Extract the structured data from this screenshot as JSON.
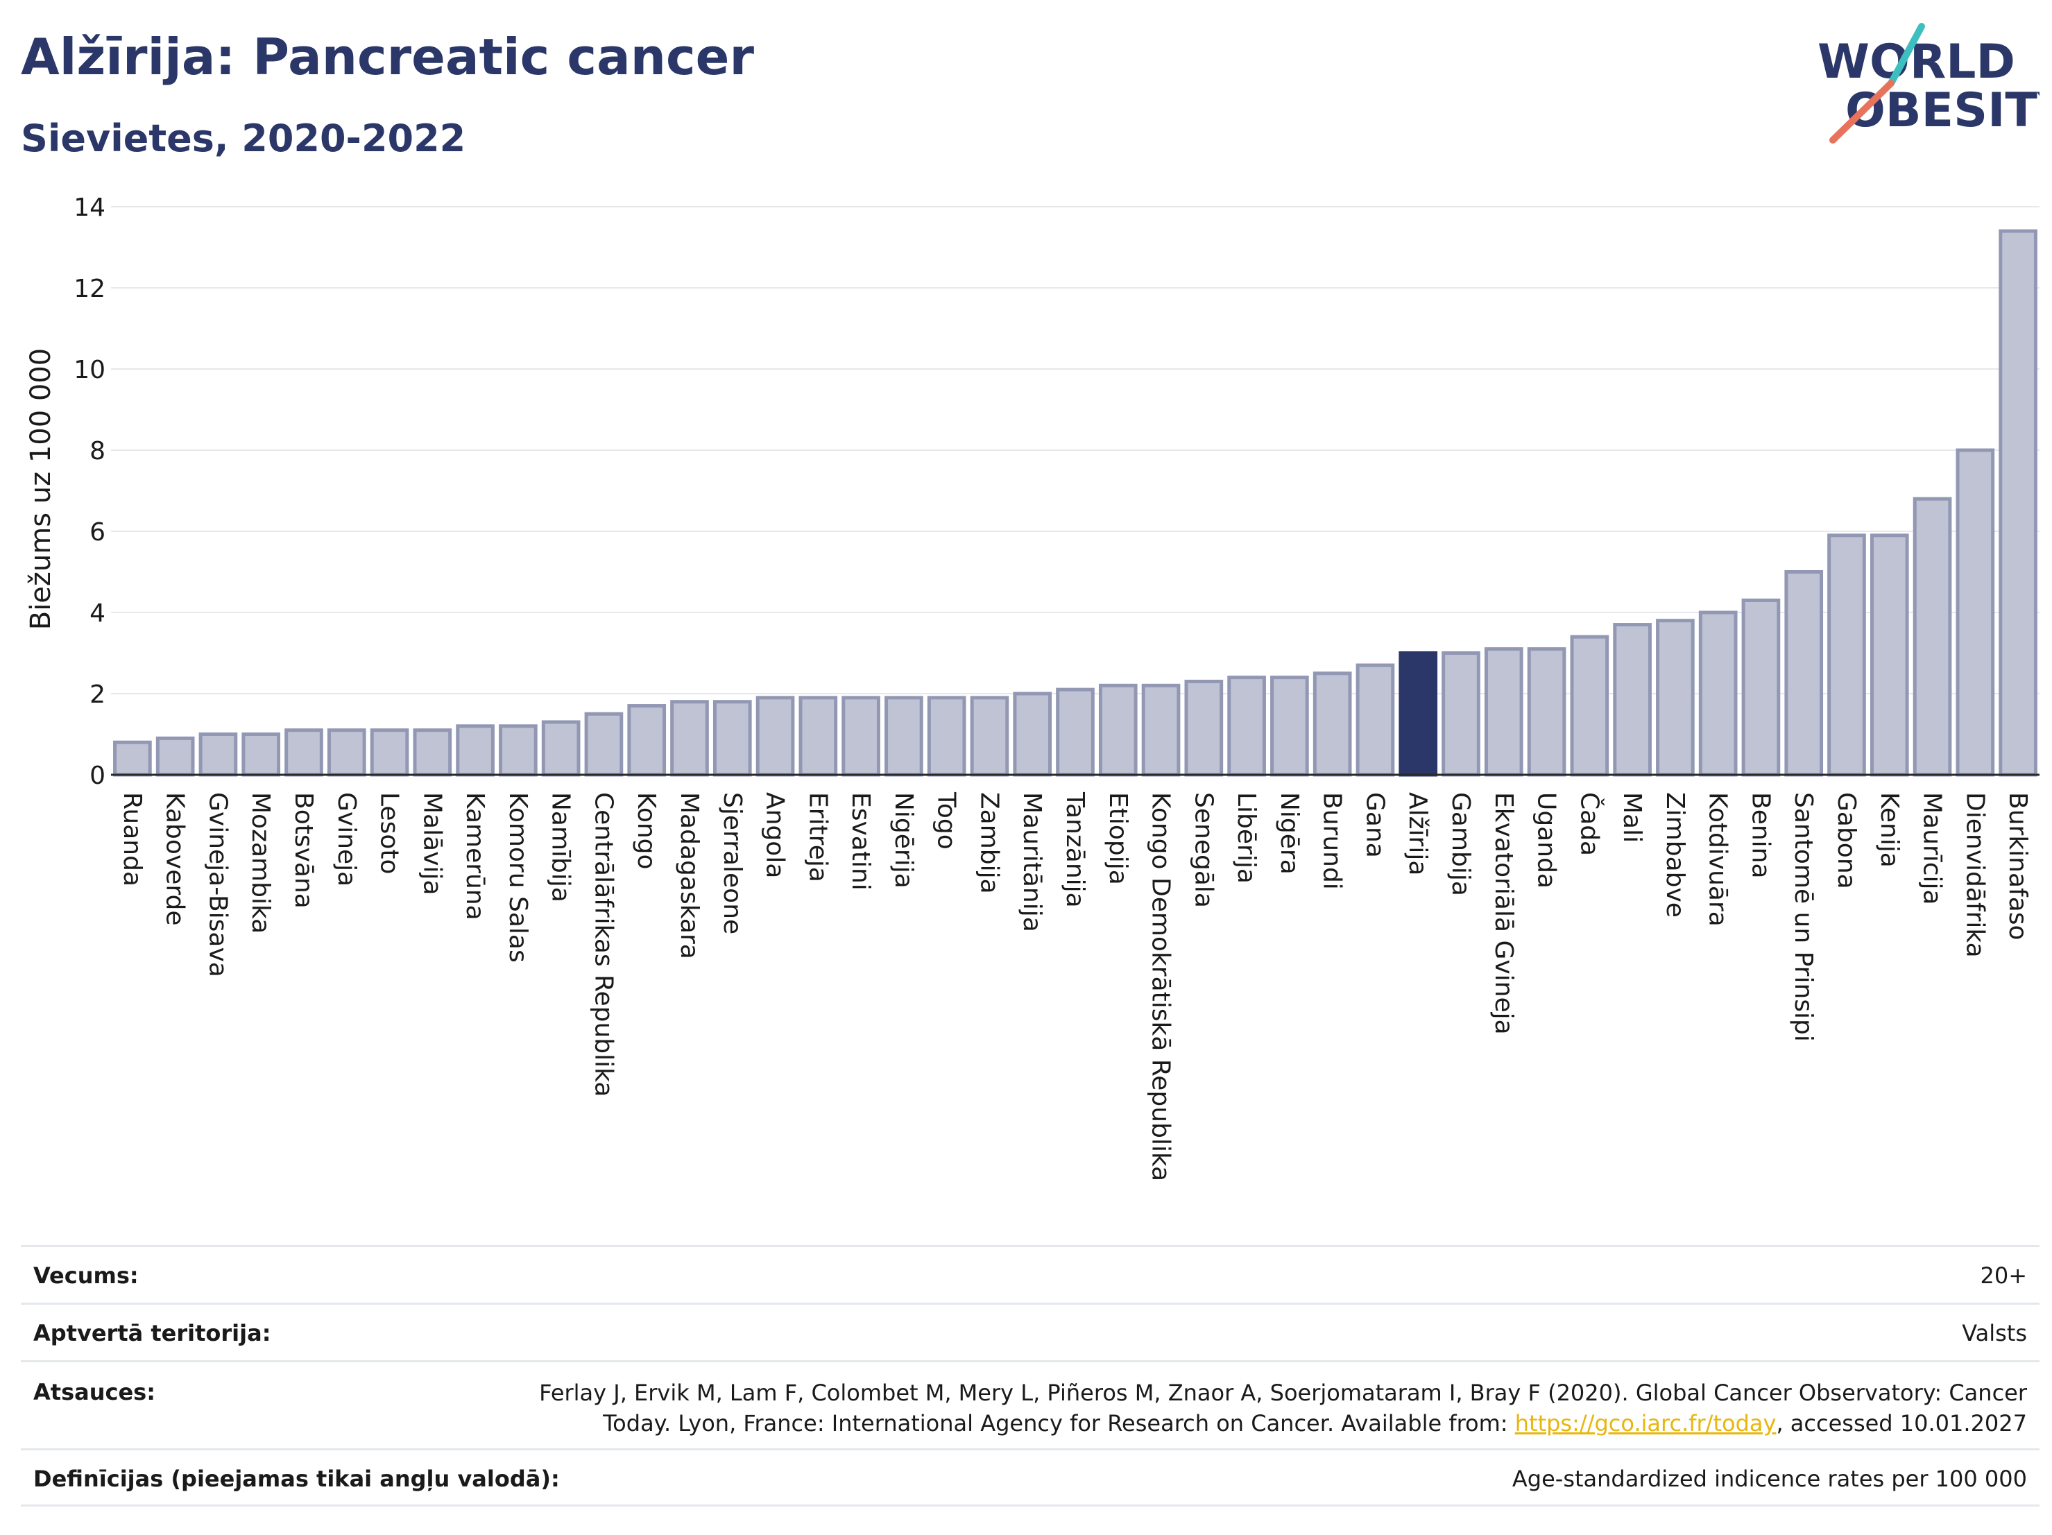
{
  "title": "Alžīrija: Pancreatic cancer",
  "subtitle": "Sievietes, 2020-2022",
  "logo": {
    "line1": "WORLD",
    "line2": "OBESITY"
  },
  "colors": {
    "bar": "#bfc3d3",
    "bar_stroke": "#9298b4",
    "highlight": "#2a3768",
    "title": "#2a3768",
    "link": "#e8b60c"
  },
  "chart_data": {
    "type": "bar",
    "ylabel": "Biežums uz 100 000",
    "ylim": [
      0,
      14
    ],
    "yticks": [
      0,
      2,
      4,
      6,
      8,
      10,
      12,
      14
    ],
    "grid": true,
    "highlight": "Alžīrija",
    "categories": [
      "Ruanda",
      "Kaboverde",
      "Gvineja-Bisava",
      "Mozambika",
      "Botsvāna",
      "Gvineja",
      "Lesoto",
      "Malāvija",
      "Kamerūna",
      "Komoru Salas",
      "Namībija",
      "Centrālāfrikas Republika",
      "Kongo",
      "Madagaskara",
      "Sjerraleone",
      "Angola",
      "Eritreja",
      "Esvatini",
      "Nigērija",
      "Togo",
      "Zambija",
      "Mauritānija",
      "Tanzānija",
      "Etiopija",
      "Kongo Demokrātiskā Republika",
      "Senegāla",
      "Libērija",
      "Nigēra",
      "Burundi",
      "Gana",
      "Alžīrija",
      "Gambija",
      "Ekvatoriālā Gvineja",
      "Uganda",
      "Čada",
      "Mali",
      "Zimbabve",
      "Kotdivuāra",
      "Benina",
      "Santomē un Prinsipi",
      "Gabona",
      "Kenija",
      "Maurīcija",
      "Dienvidāfrika",
      "Burkinafaso"
    ],
    "values": [
      0.8,
      0.9,
      1.0,
      1.0,
      1.1,
      1.1,
      1.1,
      1.1,
      1.2,
      1.2,
      1.3,
      1.5,
      1.7,
      1.8,
      1.8,
      1.9,
      1.9,
      1.9,
      1.9,
      1.9,
      1.9,
      2.0,
      2.1,
      2.2,
      2.2,
      2.3,
      2.4,
      2.4,
      2.5,
      2.7,
      3.0,
      3.0,
      3.1,
      3.1,
      3.4,
      3.7,
      3.8,
      4.0,
      4.3,
      5.0,
      5.9,
      5.9,
      6.8,
      8.0,
      13.4
    ]
  },
  "table": {
    "rows": [
      {
        "label": "Vecums:",
        "value": "20+"
      },
      {
        "label": "Aptvertā teritorija:",
        "value": "Valsts"
      },
      {
        "label": "Atsauces:",
        "value_pre": "Ferlay J, Ervik M, Lam F, Colombet M, Mery L, Piñeros M, Znaor A, Soerjomataram I, Bray F (2020). Global Cancer Observatory: Cancer Today. Lyon, France: International Agency for Research on Cancer. Available from: ",
        "link": "https://gco.iarc.fr/today",
        "value_post": ", accessed 10.01.2027"
      },
      {
        "label": "Definīcijas (pieejamas tikai angļu valodā):",
        "value": "Age-standardized indicence rates per 100 000"
      }
    ]
  }
}
